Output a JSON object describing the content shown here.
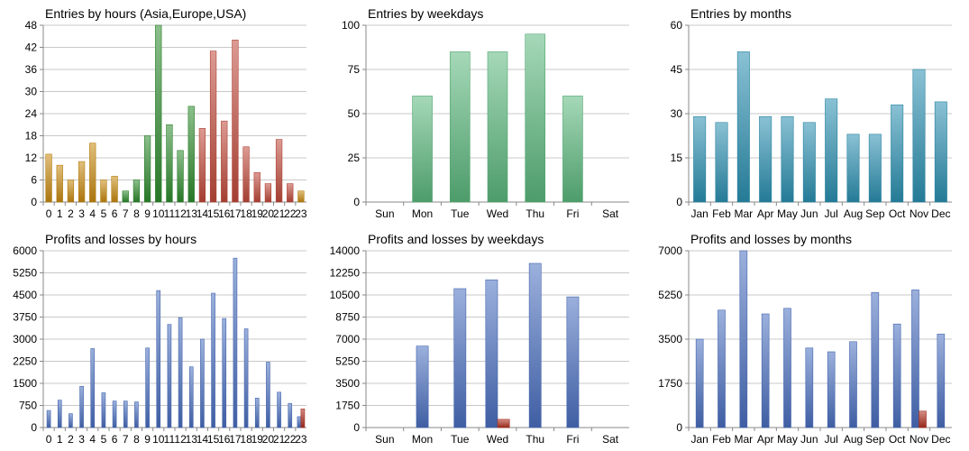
{
  "chart_data": [
    {
      "type": "bar",
      "title": "Entries by hours (Asia,Europe,USA)",
      "categories": [
        "0",
        "1",
        "2",
        "3",
        "4",
        "5",
        "6",
        "7",
        "8",
        "9",
        "10",
        "11",
        "12",
        "13",
        "14",
        "15",
        "16",
        "17",
        "18",
        "19",
        "20",
        "21",
        "22",
        "23"
      ],
      "values": [
        13,
        10,
        6,
        11,
        16,
        6,
        7,
        3,
        6,
        18,
        48,
        21,
        14,
        26,
        20,
        41,
        22,
        44,
        15,
        8,
        5,
        17,
        5,
        3
      ],
      "bar_colors": [
        "#c88a10",
        "#c88a10",
        "#c88a10",
        "#c88a10",
        "#c88a10",
        "#c88a10",
        "#c88a10",
        "#2e8b2e",
        "#2e8b2e",
        "#2e8b2e",
        "#2e8b2e",
        "#2e8b2e",
        "#2e8b2e",
        "#2e8b2e",
        "#c0493a",
        "#c0493a",
        "#c0493a",
        "#c0493a",
        "#c0493a",
        "#c0493a",
        "#c0493a",
        "#c0493a",
        "#c0493a",
        "#c88a10"
      ],
      "yticks": [
        "0",
        "6",
        "12",
        "18",
        "24",
        "30",
        "36",
        "42",
        "48"
      ],
      "ylim": [
        0,
        48
      ],
      "grid": true
    },
    {
      "type": "bar",
      "title": "Entries by weekdays",
      "categories": [
        "Sun",
        "Mon",
        "Tue",
        "Wed",
        "Thu",
        "Fri",
        "Sat"
      ],
      "values": [
        0,
        60,
        85,
        85,
        95,
        60,
        0
      ],
      "bar_colors": [
        "#5bb87d",
        "#5bb87d",
        "#5bb87d",
        "#5bb87d",
        "#5bb87d",
        "#5bb87d",
        "#5bb87d"
      ],
      "yticks": [
        "0",
        "25",
        "50",
        "75",
        "100"
      ],
      "ylim": [
        0,
        100
      ],
      "grid": true
    },
    {
      "type": "bar",
      "title": "Entries by months",
      "categories": [
        "Jan",
        "Feb",
        "Mar",
        "Apr",
        "May",
        "Jun",
        "Jul",
        "Aug",
        "Sep",
        "Oct",
        "Nov",
        "Dec"
      ],
      "values": [
        29,
        27,
        51,
        29,
        29,
        27,
        35,
        23,
        23,
        33,
        45,
        34
      ],
      "bar_colors": [
        "#2a8fb0",
        "#2a8fb0",
        "#2a8fb0",
        "#2a8fb0",
        "#2a8fb0",
        "#2a8fb0",
        "#2a8fb0",
        "#2a8fb0",
        "#2a8fb0",
        "#2a8fb0",
        "#2a8fb0",
        "#2a8fb0"
      ],
      "yticks": [
        "0",
        "15",
        "30",
        "45",
        "60"
      ],
      "ylim": [
        0,
        60
      ],
      "grid": true
    },
    {
      "type": "bar",
      "title": "Profits and losses by hours",
      "categories": [
        "0",
        "1",
        "2",
        "3",
        "4",
        "5",
        "6",
        "7",
        "8",
        "9",
        "10",
        "11",
        "12",
        "13",
        "14",
        "15",
        "16",
        "17",
        "18",
        "19",
        "20",
        "21",
        "22",
        "23"
      ],
      "series": [
        {
          "values": [
            580,
            930,
            470,
            1400,
            2680,
            1180,
            900,
            900,
            870,
            2700,
            4650,
            3500,
            3730,
            2060,
            3000,
            4560,
            3700,
            5750,
            3350,
            1000,
            2220,
            1200,
            820,
            370
          ],
          "color": "#4a6fc0"
        },
        {
          "values": [
            0,
            0,
            0,
            0,
            0,
            0,
            0,
            0,
            0,
            0,
            0,
            0,
            0,
            0,
            0,
            0,
            0,
            0,
            0,
            0,
            0,
            0,
            0,
            630
          ],
          "color": "#b03020"
        }
      ],
      "yticks": [
        "0",
        "750",
        "1500",
        "2250",
        "3000",
        "3750",
        "4500",
        "5250",
        "6000"
      ],
      "ylim": [
        0,
        6000
      ],
      "grid": true
    },
    {
      "type": "bar",
      "title": "Profits and losses by weekdays",
      "categories": [
        "Sun",
        "Mon",
        "Tue",
        "Wed",
        "Thu",
        "Fri",
        "Sat"
      ],
      "series": [
        {
          "values": [
            0,
            6450,
            11000,
            11700,
            13000,
            10350,
            0
          ],
          "color": "#4a6fc0"
        },
        {
          "values": [
            0,
            0,
            0,
            650,
            0,
            0,
            0
          ],
          "color": "#b03020"
        }
      ],
      "yticks": [
        "0",
        "1750",
        "3500",
        "5250",
        "7000",
        "8750",
        "10500",
        "12250",
        "14000"
      ],
      "ylim": [
        0,
        14000
      ],
      "grid": true
    },
    {
      "type": "bar",
      "title": "Profits and losses by months",
      "categories": [
        "Jan",
        "Feb",
        "Mar",
        "Apr",
        "May",
        "Jun",
        "Jul",
        "Aug",
        "Sep",
        "Oct",
        "Nov",
        "Dec"
      ],
      "series": [
        {
          "values": [
            3500,
            4650,
            7000,
            4500,
            4720,
            3150,
            3000,
            3400,
            5350,
            4100,
            5450,
            3700
          ],
          "color": "#4a6fc0"
        },
        {
          "values": [
            0,
            0,
            0,
            0,
            0,
            0,
            0,
            0,
            0,
            0,
            650,
            0
          ],
          "color": "#b03020"
        }
      ],
      "yticks": [
        "0",
        "1750",
        "3500",
        "5250",
        "7000"
      ],
      "ylim": [
        0,
        7000
      ],
      "grid": true
    }
  ]
}
